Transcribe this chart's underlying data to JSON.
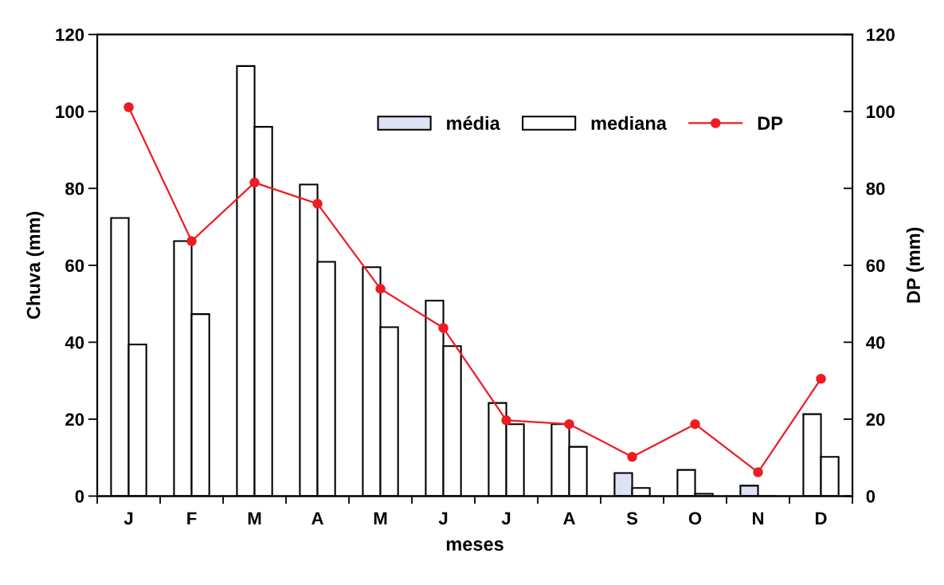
{
  "chart_data": {
    "type": "bar",
    "xlabel": "meses",
    "ylabel": "Chuva (mm)",
    "y2label": "DP (mm)",
    "categories": [
      "J",
      "F",
      "M",
      "A",
      "M",
      "J",
      "J",
      "A",
      "S",
      "O",
      "N",
      "D"
    ],
    "series": [
      {
        "name": "média",
        "color": "#dde3f3",
        "colors": [
          "#ffffff",
          "#ffffff",
          "#ffffff",
          "#ffffff",
          "#ffffff",
          "#ffffff",
          "#ffffff",
          "#ffffff",
          "#dde3f3",
          "#ffffff",
          "#dde3f3",
          "#ffffff"
        ],
        "values": [
          72.3,
          66.3,
          111.8,
          81,
          59.5,
          50.8,
          24.2,
          18.7,
          6.0,
          6.8,
          2.7,
          21.3
        ]
      },
      {
        "name": "mediana",
        "color": "#ffffff",
        "values": [
          39.4,
          47.3,
          96,
          60.9,
          43.9,
          39,
          18.7,
          12.8,
          2.1,
          0.6,
          0,
          10.2
        ]
      },
      {
        "name": "DP",
        "type": "line",
        "axis": "y2",
        "color": "#ed1c24",
        "marker": "circle",
        "values": [
          101.1,
          66.3,
          81.5,
          76,
          53.9,
          43.7,
          19.7,
          18.7,
          10.2,
          18.7,
          6.2,
          30.5
        ]
      }
    ],
    "ylim": [
      0,
      120
    ],
    "yticks": [
      0,
      20,
      40,
      60,
      80,
      100,
      120
    ],
    "y2lim": [
      0,
      120
    ],
    "y2ticks": [
      0,
      20,
      40,
      60,
      80,
      100,
      120
    ],
    "grid": false,
    "legend": "top"
  }
}
